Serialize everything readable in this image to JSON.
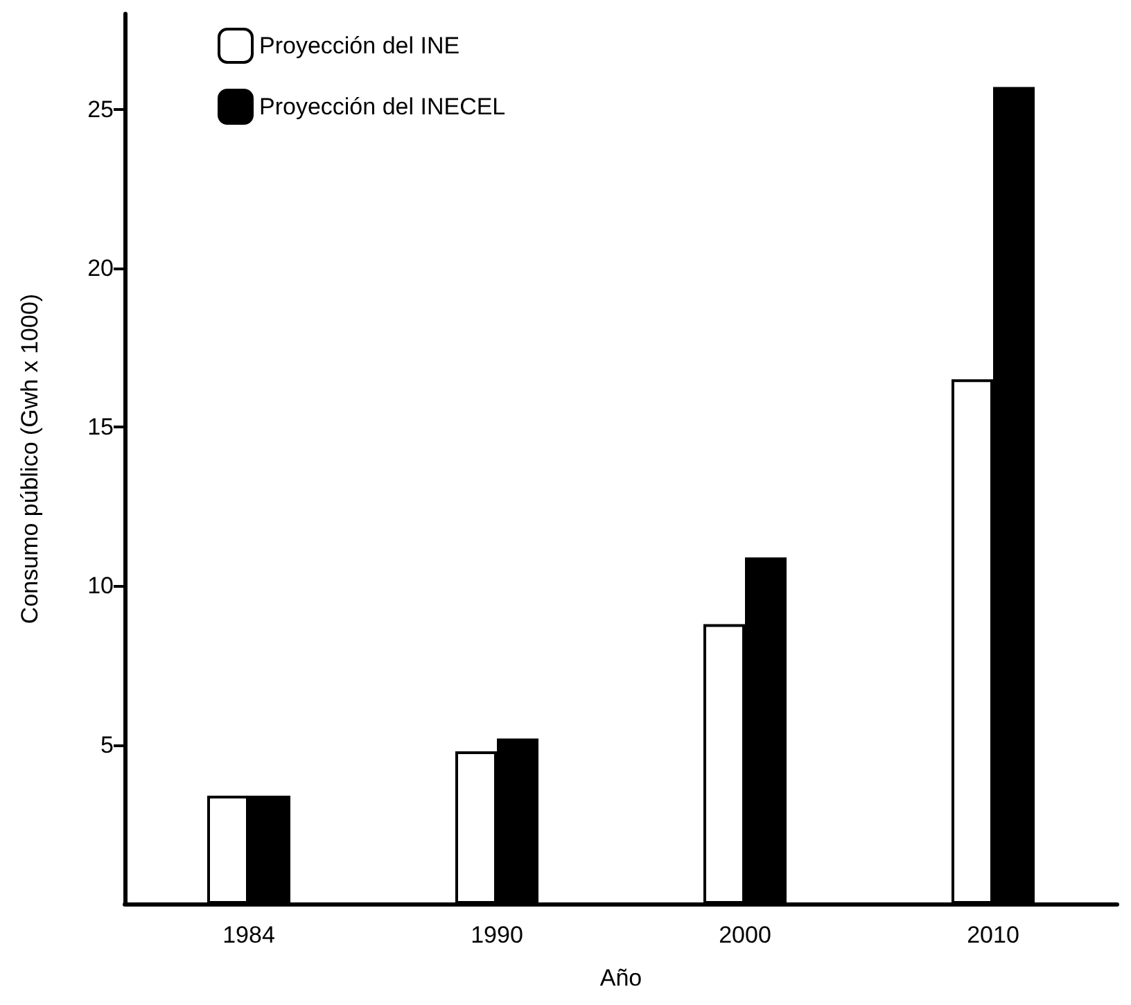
{
  "chart_data": {
    "type": "bar",
    "xlabel": "Año",
    "ylabel": "Consumo público (Gwh x 1000)",
    "categories": [
      "1984",
      "1990",
      "2000",
      "2010"
    ],
    "series": [
      {
        "name": "Proyección del INE",
        "color": "#ffffff",
        "values": [
          3.4,
          4.8,
          8.8,
          16.5
        ]
      },
      {
        "name": "Proyección del INECEL",
        "color": "#000000",
        "values": [
          3.4,
          5.2,
          10.9,
          25.7
        ]
      }
    ],
    "ylim": [
      0,
      28
    ],
    "yticks": [
      5,
      10,
      15,
      20,
      25
    ],
    "grid": false,
    "legend": "top left"
  }
}
